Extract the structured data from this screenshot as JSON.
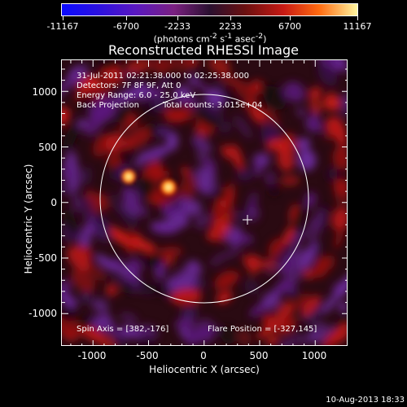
{
  "colorbar": {
    "ticks": [
      "-11167",
      "-6700",
      "-2233",
      "2233",
      "6700",
      "11167"
    ],
    "units_html": "(photons cm<sup>-2</sup> s<sup>-1</sup> asec<sup>-2</sup>)"
  },
  "title": "Reconstructed RHESSI Image",
  "info": {
    "time_range": "31-Jul-2011 02:21:38.000 to 02:25:38.000",
    "detectors": "Detectors: 7F 8F 9F, Att 0",
    "energy_range": "Energy Range: 6.0 - 25.0 keV",
    "method": "Back Projection",
    "total_counts": "Total counts: 3.015e+04",
    "spin_axis": "Spin Axis = [382,-176]",
    "flare_position": "Flare Position = [-327,145]"
  },
  "axes": {
    "xlabel": "Heliocentric X (arcsec)",
    "ylabel": "Heliocentric Y (arcsec)",
    "xticks": [
      "-1000",
      "-500",
      "0",
      "500",
      "1000"
    ],
    "yticks": [
      "1000",
      "500",
      "0",
      "-500",
      "-1000"
    ]
  },
  "timestamp": "10-Aug-2013 18:33",
  "colors": {
    "background": "#000000",
    "solar_limb": "#ffffff",
    "axis": "#ffffff"
  }
}
